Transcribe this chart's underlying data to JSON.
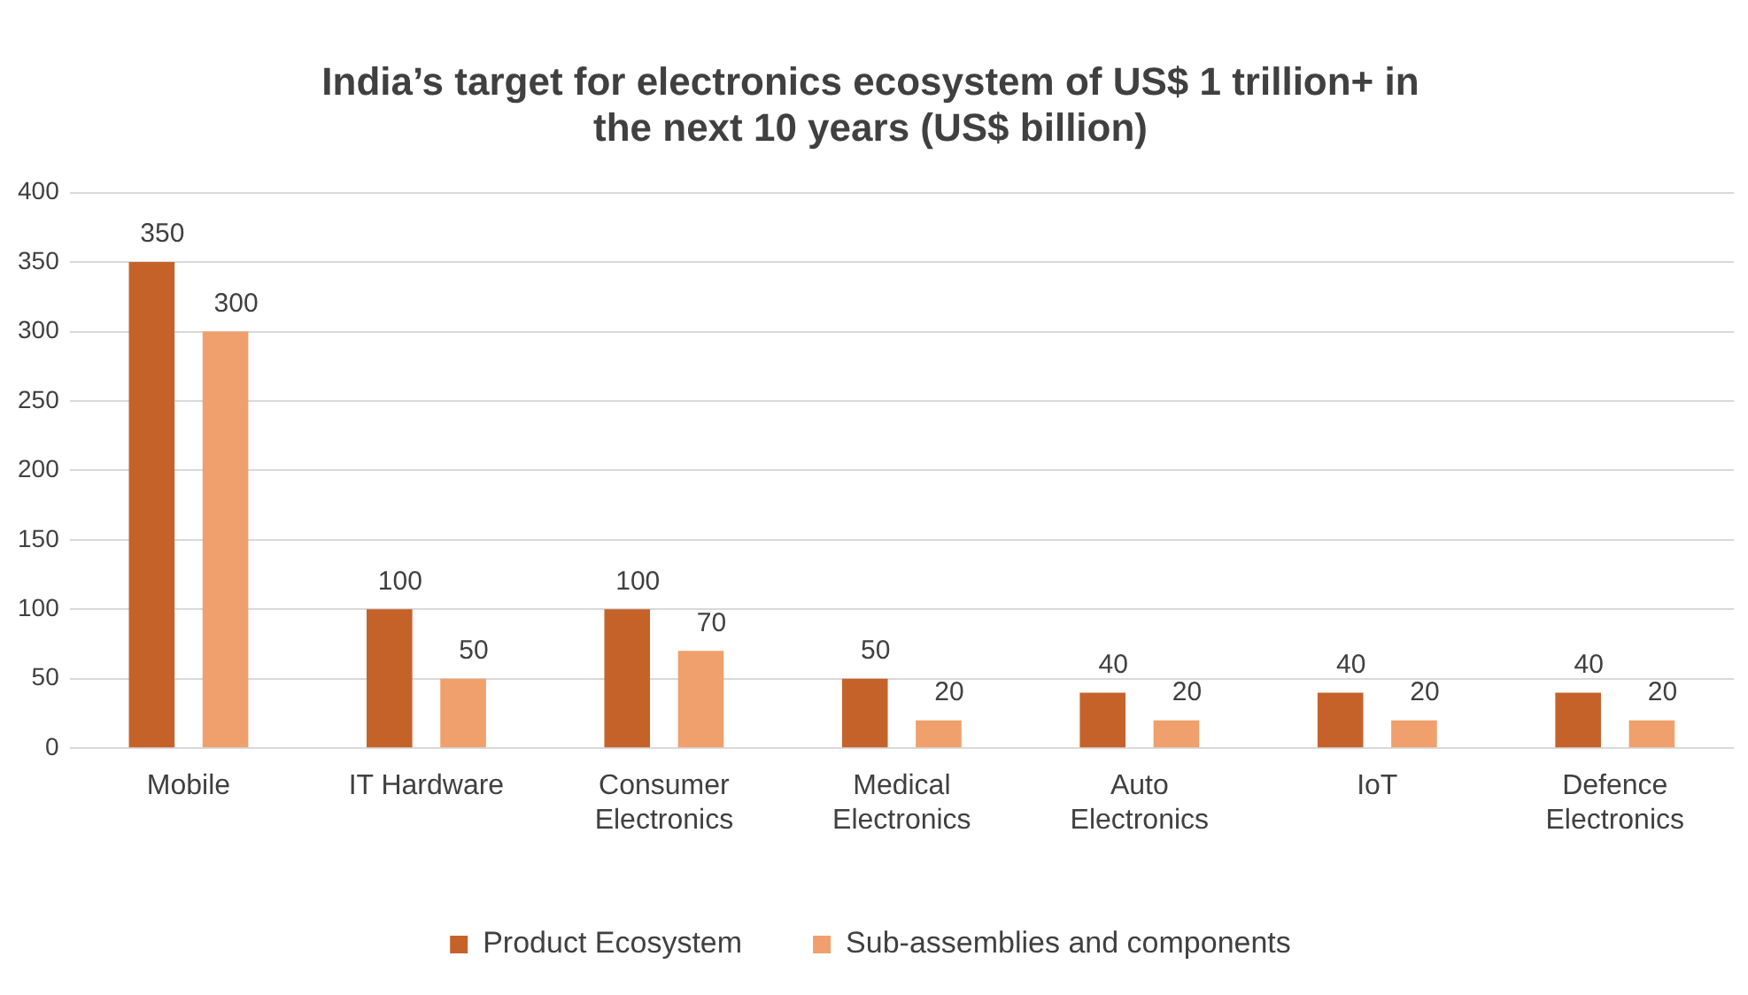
{
  "chart_data": {
    "type": "bar",
    "title": "India’s target for electronics ecosystem of US$ 1 trillion+ in the next 10 years (US$ billion)",
    "categories": [
      "Mobile",
      "IT Hardware",
      "Consumer Electronics",
      "Medical Electronics",
      "Auto Electronics",
      "IoT",
      "Defence Electronics"
    ],
    "series": [
      {
        "name": "Product Ecosystem",
        "color": "#c5622a",
        "values": [
          350,
          100,
          100,
          50,
          40,
          40,
          40
        ]
      },
      {
        "name": "Sub-assemblies and components",
        "color": "#f0a06c",
        "values": [
          300,
          50,
          70,
          20,
          20,
          20,
          20
        ]
      }
    ],
    "ylim": [
      0,
      400
    ],
    "yticks": [
      0,
      50,
      100,
      150,
      200,
      250,
      300,
      350,
      400
    ],
    "grid": "y",
    "legend": "bottom",
    "data_labels": true
  }
}
